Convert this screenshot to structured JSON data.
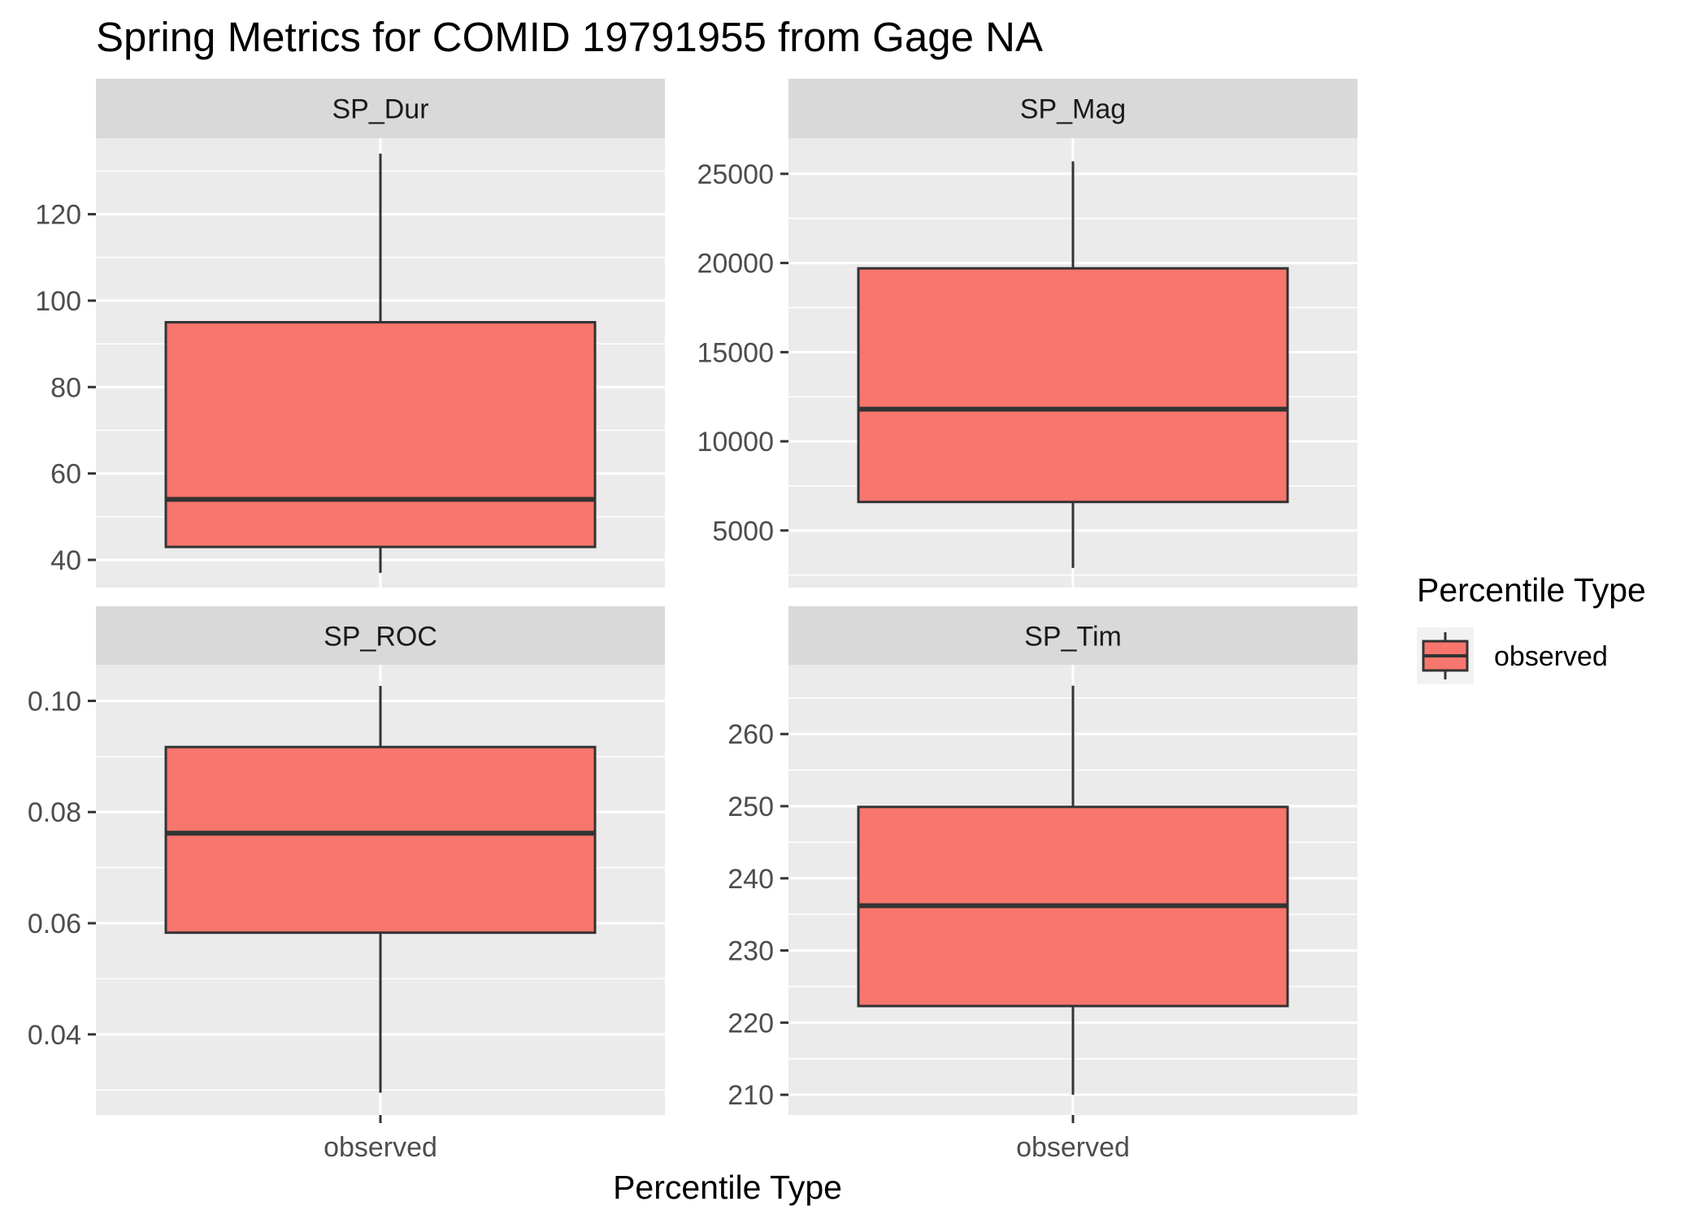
{
  "chart_data": {
    "type": "boxplot",
    "title": "Spring Metrics for COMID 19791955 from Gage NA",
    "xlabel": "Percentile Type",
    "ylabel": "",
    "legend": {
      "title": "Percentile Type",
      "placement": "right",
      "entries": [
        {
          "label": "observed",
          "color": "#F8766D"
        }
      ]
    },
    "colors": {
      "box_fill": "#F8766D",
      "box_stroke": "#333333",
      "panel_bg": "#EBEBEB",
      "strip_bg": "#D9D9D9",
      "grid": "#FFFFFF"
    },
    "panels": [
      {
        "name": "SP_Dur",
        "category": "observed",
        "ylim": [
          33.6,
          137.6
        ],
        "yticks": [
          40,
          60,
          80,
          100,
          120
        ],
        "ytick_labels": [
          "40",
          "60",
          "80",
          "100",
          "120"
        ],
        "stats": {
          "min": 37,
          "q1": 43,
          "median": 54,
          "q3": 95,
          "max": 134
        }
      },
      {
        "name": "SP_Mag",
        "category": "observed",
        "ylim": [
          1800,
          27000
        ],
        "yticks": [
          5000,
          10000,
          15000,
          20000,
          25000
        ],
        "ytick_labels": [
          "5000",
          "10000",
          "15000",
          "20000",
          "25000"
        ],
        "stats": {
          "min": 2900,
          "q1": 6600,
          "median": 11800,
          "q3": 19700,
          "max": 25700
        }
      },
      {
        "name": "SP_ROC",
        "category": "observed",
        "ylim": [
          0.0255,
          0.1065
        ],
        "yticks": [
          0.04,
          0.06,
          0.08,
          0.1
        ],
        "ytick_labels": [
          "0.04",
          "0.06",
          "0.08",
          "0.10"
        ],
        "stats": {
          "min": 0.0295,
          "q1": 0.0583,
          "median": 0.0762,
          "q3": 0.0917,
          "max": 0.1027
        }
      },
      {
        "name": "SP_Tim",
        "category": "observed",
        "ylim": [
          207.2,
          269.6
        ],
        "yticks": [
          210,
          220,
          230,
          240,
          250,
          260
        ],
        "ytick_labels": [
          "210",
          "220",
          "230",
          "240",
          "250",
          "260"
        ],
        "stats": {
          "min": 210,
          "q1": 222.3,
          "median": 236.2,
          "q3": 249.9,
          "max": 266.7
        }
      }
    ]
  }
}
